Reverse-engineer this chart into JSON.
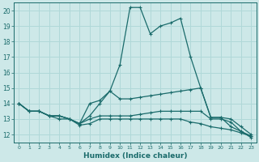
{
  "xlabel": "Humidex (Indice chaleur)",
  "xlim": [
    -0.5,
    23.5
  ],
  "ylim": [
    11.5,
    20.5
  ],
  "yticks": [
    12,
    13,
    14,
    15,
    16,
    17,
    18,
    19,
    20
  ],
  "xticks": [
    0,
    1,
    2,
    3,
    4,
    5,
    6,
    7,
    8,
    9,
    10,
    11,
    12,
    13,
    14,
    15,
    16,
    17,
    18,
    19,
    20,
    21,
    22,
    23
  ],
  "xtick_labels": [
    "0",
    "1",
    "2",
    "3",
    "4",
    "5",
    "6",
    "7",
    "8",
    "9",
    "10",
    "11",
    "12",
    "13",
    "14",
    "15",
    "16",
    "17",
    "18",
    "19",
    "20",
    "21",
    "22",
    "23"
  ],
  "bg_color": "#cde8e8",
  "line_color": "#1a6b6b",
  "grid_color": "#b0d8d8",
  "lines": [
    {
      "x": [
        0,
        1,
        2,
        3,
        4,
        5,
        6,
        7,
        8,
        9,
        10,
        11,
        12,
        13,
        14,
        15,
        16,
        17,
        18,
        19,
        20,
        21,
        22,
        23
      ],
      "y": [
        14.0,
        13.5,
        13.5,
        13.2,
        13.2,
        13.0,
        12.7,
        13.2,
        14.0,
        14.8,
        16.5,
        20.2,
        20.2,
        18.5,
        19.0,
        19.2,
        19.5,
        17.0,
        15.0,
        13.1,
        13.1,
        12.5,
        12.2,
        11.8
      ]
    },
    {
      "x": [
        0,
        1,
        2,
        3,
        4,
        5,
        6,
        7,
        8,
        9,
        10,
        11,
        12,
        13,
        14,
        15,
        16,
        17,
        18,
        19,
        20,
        21,
        22,
        23
      ],
      "y": [
        14.0,
        13.5,
        13.5,
        13.2,
        13.2,
        13.0,
        12.7,
        14.0,
        14.2,
        14.8,
        14.3,
        14.3,
        14.4,
        14.5,
        14.6,
        14.7,
        14.8,
        14.9,
        15.0,
        13.1,
        13.1,
        13.0,
        12.5,
        12.0
      ]
    },
    {
      "x": [
        0,
        1,
        2,
        3,
        4,
        5,
        6,
        7,
        8,
        9,
        10,
        11,
        12,
        13,
        14,
        15,
        16,
        17,
        18,
        19,
        20,
        21,
        22,
        23
      ],
      "y": [
        14.0,
        13.5,
        13.5,
        13.2,
        13.2,
        13.0,
        12.7,
        13.0,
        13.2,
        13.2,
        13.2,
        13.2,
        13.3,
        13.4,
        13.5,
        13.5,
        13.5,
        13.5,
        13.5,
        13.0,
        13.0,
        12.8,
        12.2,
        11.9
      ]
    },
    {
      "x": [
        0,
        1,
        2,
        3,
        4,
        5,
        6,
        7,
        8,
        9,
        10,
        11,
        12,
        13,
        14,
        15,
        16,
        17,
        18,
        19,
        20,
        21,
        22,
        23
      ],
      "y": [
        14.0,
        13.5,
        13.5,
        13.2,
        13.0,
        13.0,
        12.6,
        12.7,
        13.0,
        13.0,
        13.0,
        13.0,
        13.0,
        13.0,
        13.0,
        13.0,
        13.0,
        12.8,
        12.7,
        12.5,
        12.4,
        12.3,
        12.1,
        11.9
      ]
    }
  ]
}
